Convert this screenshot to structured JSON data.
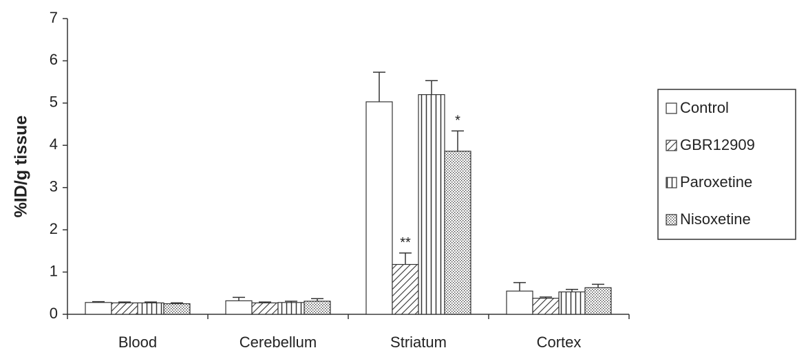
{
  "chart_data": {
    "type": "bar",
    "y_label": "%ID/g tissue",
    "categories": [
      "Blood",
      "Cerebellum",
      "Striatum",
      "Cortex"
    ],
    "series": [
      {
        "name": "Control",
        "color": "#ffffff",
        "pattern": "none",
        "values": [
          0.28,
          0.32,
          5.03,
          0.55
        ],
        "errors": [
          0.02,
          0.08,
          0.7,
          0.2
        ]
      },
      {
        "name": "GBR12909",
        "color": "#ffffff",
        "pattern": "diagonal",
        "values": [
          0.27,
          0.27,
          1.18,
          0.38
        ],
        "errors": [
          0.02,
          0.02,
          0.27,
          0.03
        ]
      },
      {
        "name": "Paroxetine",
        "color": "#ffffff",
        "pattern": "vertical",
        "values": [
          0.27,
          0.28,
          5.2,
          0.53
        ],
        "errors": [
          0.02,
          0.03,
          0.33,
          0.06
        ]
      },
      {
        "name": "Nisoxetine",
        "color": "#ffffff",
        "pattern": "dots",
        "values": [
          0.25,
          0.31,
          3.86,
          0.63
        ],
        "errors": [
          0.02,
          0.06,
          0.48,
          0.08
        ]
      }
    ],
    "annotations": [
      {
        "text": "**",
        "series": 1,
        "category": 2
      },
      {
        "text": "*",
        "series": 3,
        "category": 2
      }
    ],
    "ylim": [
      0,
      7
    ],
    "yticks": [
      0,
      1,
      2,
      3,
      4,
      5,
      6,
      7
    ],
    "legend": "right"
  }
}
